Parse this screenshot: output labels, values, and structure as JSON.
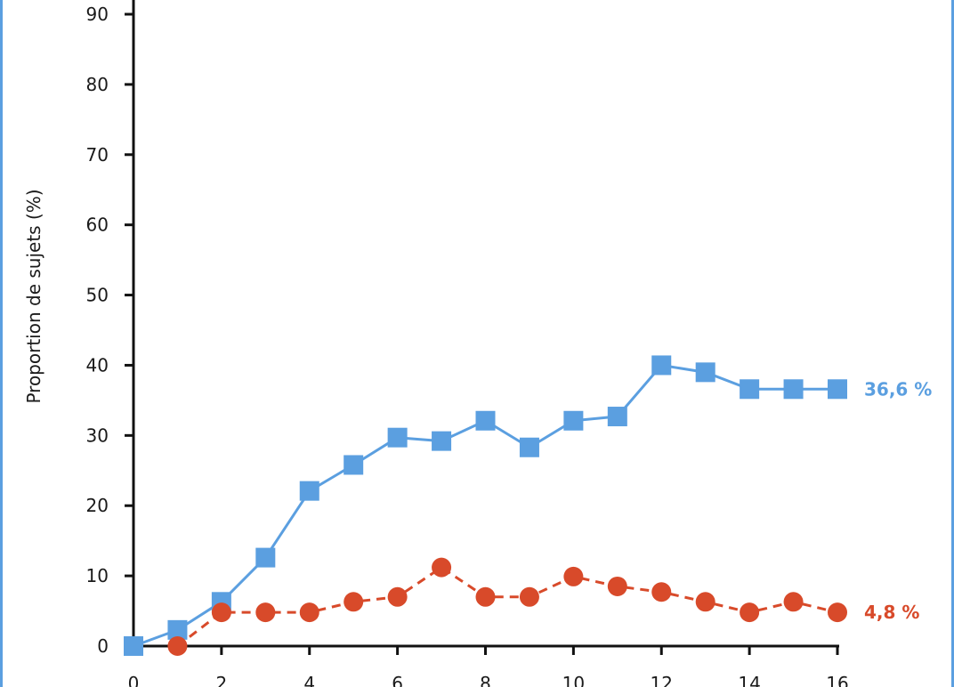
{
  "chart_data": {
    "type": "line",
    "title": "",
    "xlabel": "",
    "ylabel": "Proportion de sujets (%)",
    "xlim": [
      0,
      16
    ],
    "ylim": [
      0,
      90
    ],
    "x_ticks": [
      0,
      2,
      4,
      6,
      8,
      10,
      12,
      14,
      16
    ],
    "y_ticks": [
      0,
      10,
      20,
      30,
      40,
      50,
      60,
      70,
      80,
      90
    ],
    "grid": false,
    "series": [
      {
        "color": "#5b9fe0",
        "marker": "square",
        "line_style": "solid",
        "x": [
          0,
          1,
          2,
          3,
          4,
          5,
          6,
          7,
          8,
          9,
          10,
          11,
          12,
          13,
          14,
          15,
          16
        ],
        "values": [
          0,
          2.3,
          6.3,
          12.6,
          22.1,
          25.8,
          29.7,
          29.2,
          32.1,
          28.3,
          32.1,
          32.7,
          40.0,
          39.0,
          36.6,
          36.6,
          36.6
        ],
        "end_label": "36,6 %"
      },
      {
        "color": "#d84a2a",
        "marker": "circle",
        "line_style": "dashed",
        "x": [
          1,
          2,
          3,
          4,
          5,
          6,
          7,
          8,
          9,
          10,
          11,
          12,
          13,
          14,
          15,
          16
        ],
        "values": [
          0,
          4.8,
          4.8,
          4.8,
          6.3,
          7.0,
          11.2,
          7.0,
          7.0,
          9.9,
          8.5,
          7.7,
          6.3,
          4.8,
          6.3,
          4.8
        ],
        "end_label": "4,8 %"
      }
    ]
  }
}
